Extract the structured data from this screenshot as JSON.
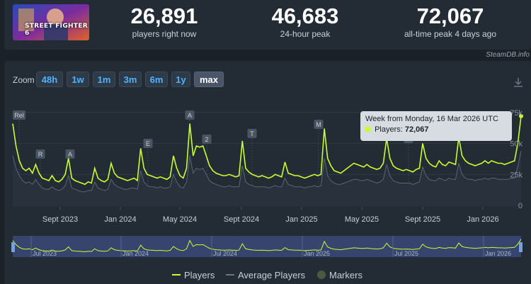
{
  "stats": {
    "game_title": "STREET FIGHTER 6",
    "current": {
      "value": "26,891",
      "label": "players right now"
    },
    "peak24": {
      "value": "46,683",
      "label": "24-hour peak"
    },
    "alltime": {
      "value": "72,067",
      "label": "all-time peak 4 days ago"
    }
  },
  "watermark": "SteamDB.info",
  "zoom": {
    "label": "Zoom",
    "buttons": [
      "48h",
      "1w",
      "1m",
      "3m",
      "6m",
      "1y",
      "max"
    ],
    "active": "max"
  },
  "tooltip": {
    "title": "Week from Monday, 16 Mar 2026 UTC",
    "series_label": "Players:",
    "value": "72,067"
  },
  "legend": {
    "players": "Players",
    "average": "Average Players",
    "markers": "Markers"
  },
  "colors": {
    "players": "#c8ff30",
    "average": "#6b7685",
    "markers": "#4a5a3e",
    "accent": "#4fb3ff"
  },
  "chart_data": {
    "type": "line",
    "x_tick_labels": [
      "Sept 2023",
      "Jan 2024",
      "May 2024",
      "Sept 2024",
      "Jan 2025",
      "May 2025",
      "Sept 2025",
      "Jan 2026"
    ],
    "y_tick_labels": [
      "0",
      "25k",
      "50k",
      "75k"
    ],
    "ylim": [
      0,
      80000
    ],
    "markers": [
      "Rel",
      "R",
      "A",
      "E",
      "A",
      "2",
      "T",
      "M",
      "G"
    ],
    "navigator_labels": [
      "Jul 2023",
      "Jan 2024",
      "Jul 2024",
      "Jan 2025",
      "Jul 2025",
      "Jan 2026"
    ],
    "series": [
      {
        "name": "Players",
        "values": [
          66000,
          48000,
          36000,
          30000,
          28000,
          30000,
          26000,
          33000,
          26000,
          22000,
          21000,
          20000,
          24000,
          20000,
          19000,
          21000,
          25000,
          38000,
          22000,
          20000,
          19000,
          18000,
          17000,
          19000,
          18000,
          30000,
          22000,
          20000,
          19000,
          21000,
          34000,
          26000,
          23000,
          22000,
          21000,
          20000,
          21000,
          22000,
          20000,
          46000,
          30000,
          25000,
          24000,
          23000,
          22000,
          23000,
          22000,
          21000,
          23000,
          40000,
          30000,
          24000,
          22000,
          30000,
          66000,
          40000,
          48000,
          47000,
          48000,
          40000,
          32000,
          28000,
          26000,
          25000,
          24000,
          24000,
          25000,
          24000,
          23000,
          24000,
          52000,
          30000,
          27000,
          25000,
          24000,
          23000,
          24000,
          23000,
          22000,
          23000,
          25000,
          24000,
          23000,
          35000,
          26000,
          25000,
          24000,
          24000,
          23000,
          22000,
          23000,
          24000,
          25000,
          24000,
          25000,
          62000,
          38000,
          32000,
          28000,
          27000,
          26000,
          28000,
          30000,
          32000,
          34000,
          33000,
          32000,
          31000,
          33000,
          31000,
          30000,
          29000,
          30000,
          34000,
          54000,
          38000,
          32000,
          30000,
          29000,
          28000,
          29000,
          28000,
          27000,
          29000,
          30000,
          50000,
          38000,
          34000,
          32000,
          31000,
          36000,
          33000,
          32000,
          35000,
          34000,
          33000,
          55000,
          40000,
          36000,
          34000,
          33000,
          32000,
          33000,
          34000,
          36000,
          34000,
          36000,
          35000,
          34000,
          34000,
          33000,
          34000,
          35000,
          36000,
          50000,
          72067
        ]
      },
      {
        "name": "Average Players",
        "values": [
          40000,
          30000,
          24000,
          20000,
          18000,
          19000,
          17000,
          21000,
          17000,
          14000,
          13000,
          13000,
          15000,
          13000,
          12000,
          13000,
          16000,
          24000,
          14000,
          13000,
          12000,
          11000,
          11000,
          12000,
          12000,
          19000,
          14000,
          13000,
          12000,
          13000,
          21000,
          17000,
          15000,
          14000,
          13000,
          13000,
          14000,
          14000,
          13000,
          28000,
          19000,
          16000,
          15000,
          15000,
          14000,
          15000,
          14000,
          14000,
          15000,
          25000,
          19000,
          15000,
          14000,
          19000,
          40000,
          26000,
          30000,
          29000,
          30000,
          25000,
          20000,
          18000,
          17000,
          16000,
          15000,
          15000,
          16000,
          15000,
          15000,
          15000,
          32000,
          19000,
          17000,
          16000,
          15000,
          15000,
          15000,
          15000,
          14000,
          15000,
          16000,
          15000,
          15000,
          22000,
          17000,
          16000,
          15000,
          15000,
          15000,
          14000,
          15000,
          15000,
          16000,
          15000,
          16000,
          38000,
          24000,
          20000,
          18000,
          17000,
          17000,
          18000,
          19000,
          20000,
          21000,
          21000,
          20000,
          20000,
          21000,
          20000,
          19000,
          18000,
          19000,
          21000,
          33000,
          24000,
          20000,
          19000,
          18000,
          18000,
          18000,
          18000,
          17000,
          18000,
          19000,
          31000,
          24000,
          21000,
          20000,
          20000,
          22000,
          21000,
          20000,
          22000,
          21000,
          21000,
          34000,
          25000,
          22000,
          21000,
          21000,
          20000,
          21000,
          21000,
          22000,
          21000,
          22000,
          22000,
          21000,
          21000,
          21000,
          21000,
          22000,
          22000,
          31000,
          44000
        ]
      }
    ]
  }
}
